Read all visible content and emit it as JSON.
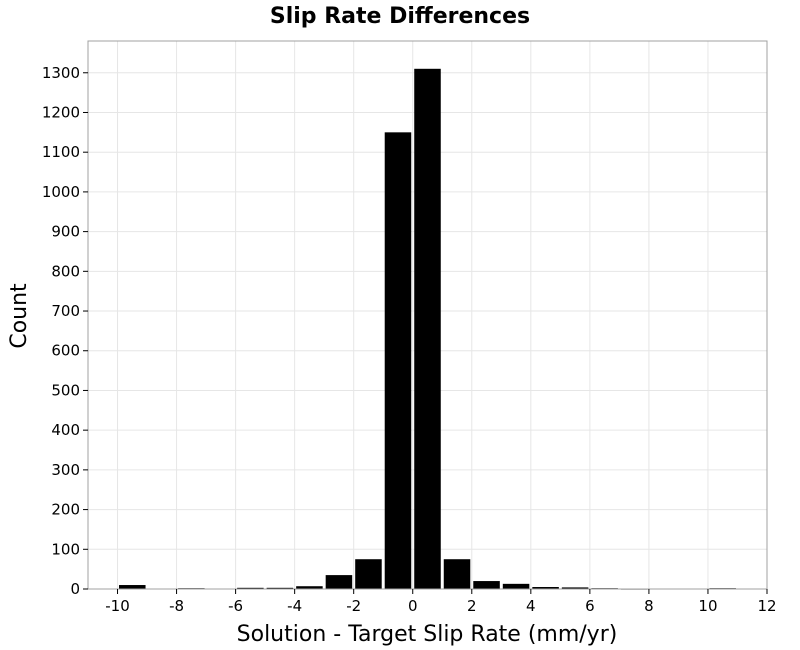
{
  "chart_data": {
    "type": "bar",
    "title": "Slip Rate Differences",
    "xlabel": "Solution - Target Slip Rate (mm/yr)",
    "ylabel": "Count",
    "xlim": [
      -11,
      12
    ],
    "ylim": [
      0,
      1380
    ],
    "xticks": [
      -10,
      -8,
      -6,
      -4,
      -2,
      0,
      2,
      4,
      6,
      8,
      10,
      12
    ],
    "yticks": [
      0,
      100,
      200,
      300,
      400,
      500,
      600,
      700,
      800,
      900,
      1000,
      1100,
      1200,
      1300
    ],
    "bin_width": 1,
    "x": [
      -10,
      -9,
      -8,
      -7,
      -6,
      -5,
      -4,
      -3,
      -2,
      -1,
      0,
      1,
      2,
      3,
      4,
      5,
      6,
      7,
      8,
      9,
      10
    ],
    "values": [
      10,
      0,
      2,
      0,
      3,
      3,
      7,
      35,
      75,
      1150,
      1310,
      75,
      20,
      13,
      5,
      4,
      2,
      1,
      0,
      0,
      2
    ],
    "bar_color": "#000000",
    "grid": true
  }
}
